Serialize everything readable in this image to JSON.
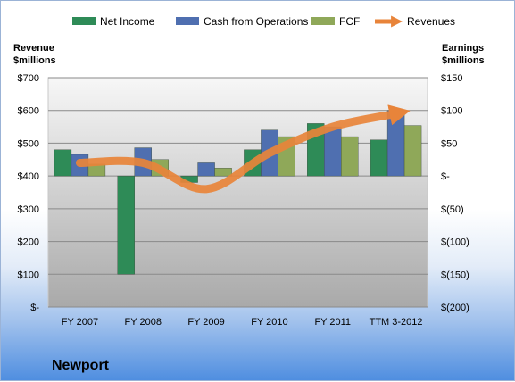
{
  "chart_data": {
    "type": "bar",
    "categories": [
      "FY 2007",
      "FY 2008",
      "FY 2009",
      "FY 2010",
      "FY 2011",
      "TTM 3-2012"
    ],
    "series": [
      {
        "name": "Net Income",
        "axis": "right",
        "color": "#2e8b57",
        "values": [
          40,
          -150,
          -10,
          40,
          80,
          55
        ]
      },
      {
        "name": "Cash from Operations",
        "axis": "right",
        "color": "#4f6fb0",
        "values": [
          33,
          43,
          20,
          70,
          75,
          100
        ]
      },
      {
        "name": "FCF",
        "axis": "right",
        "color": "#8fa859",
        "values": [
          18,
          25,
          12,
          60,
          60,
          77
        ]
      },
      {
        "name": "Revenues",
        "axis": "left",
        "type": "line",
        "color": "#e8843a",
        "values": [
          440,
          440,
          360,
          470,
          550,
          590
        ]
      }
    ],
    "left_axis": {
      "title_line1": "Revenue",
      "title_line2": "$millions",
      "ylim": [
        0,
        700
      ],
      "ticks": [
        700,
        600,
        500,
        400,
        300,
        200,
        100,
        0
      ],
      "tick_labels": [
        "$700",
        "$600",
        "$500",
        "$400",
        "$300",
        "$200",
        "$100",
        "$-"
      ]
    },
    "right_axis": {
      "title_line1": "Earnings",
      "title_line2": "$millions",
      "ylim": [
        -200,
        150
      ],
      "ticks": [
        150,
        100,
        50,
        0,
        -50,
        -100,
        -150,
        -200
      ],
      "tick_labels": [
        "$150",
        "$100",
        "$50",
        "$-",
        "$(50)",
        "$(100)",
        "$(150)",
        "$(200)"
      ]
    },
    "grid": true,
    "legend_position": "top",
    "company": "Newport"
  }
}
